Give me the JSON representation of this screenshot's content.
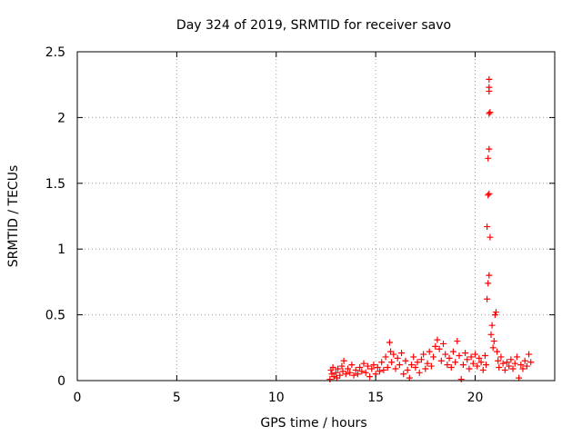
{
  "chart_data": {
    "type": "scatter",
    "title": "Day 324 of 2019, SRMTID for receiver savo",
    "xlabel": "GPS time / hours",
    "ylabel": "SRMTID / TECUs",
    "xlim": [
      0,
      24
    ],
    "ylim": [
      0,
      2.5
    ],
    "xticks": [
      0,
      5,
      10,
      15,
      20
    ],
    "xtick_labels": [
      "0",
      "5",
      "10",
      "15",
      "20"
    ],
    "yticks": [
      0,
      0.5,
      1,
      1.5,
      2,
      2.5
    ],
    "ytick_labels": [
      "0",
      "0.5",
      "1",
      "1.5",
      "2",
      "2.5"
    ],
    "grid": true,
    "marker": "+",
    "series": [
      {
        "name": "savo",
        "color": "#ff0000",
        "points": [
          [
            12.7,
            0.01
          ],
          [
            12.75,
            0.08
          ],
          [
            12.8,
            0.05
          ],
          [
            12.85,
            0.1
          ],
          [
            12.9,
            0.03
          ],
          [
            13.0,
            0.06
          ],
          [
            13.05,
            0.02
          ],
          [
            13.1,
            0.09
          ],
          [
            13.2,
            0.04
          ],
          [
            13.3,
            0.11
          ],
          [
            13.35,
            0.07
          ],
          [
            13.4,
            0.15
          ],
          [
            13.5,
            0.05
          ],
          [
            13.6,
            0.09
          ],
          [
            13.7,
            0.06
          ],
          [
            13.8,
            0.12
          ],
          [
            13.9,
            0.04
          ],
          [
            14.0,
            0.08
          ],
          [
            14.1,
            0.05
          ],
          [
            14.2,
            0.1
          ],
          [
            14.3,
            0.07
          ],
          [
            14.4,
            0.13
          ],
          [
            14.5,
            0.06
          ],
          [
            14.6,
            0.11
          ],
          [
            14.7,
            0.03
          ],
          [
            14.8,
            0.09
          ],
          [
            14.9,
            0.12
          ],
          [
            15.0,
            0.05
          ],
          [
            15.1,
            0.1
          ],
          [
            15.2,
            0.07
          ],
          [
            15.3,
            0.14
          ],
          [
            15.4,
            0.08
          ],
          [
            15.5,
            0.18
          ],
          [
            15.6,
            0.1
          ],
          [
            15.7,
            0.29
          ],
          [
            15.75,
            0.22
          ],
          [
            15.8,
            0.14
          ],
          [
            15.9,
            0.2
          ],
          [
            16.0,
            0.09
          ],
          [
            16.1,
            0.17
          ],
          [
            16.2,
            0.12
          ],
          [
            16.3,
            0.21
          ],
          [
            16.4,
            0.05
          ],
          [
            16.5,
            0.15
          ],
          [
            16.6,
            0.08
          ],
          [
            16.7,
            0.02
          ],
          [
            16.8,
            0.12
          ],
          [
            16.9,
            0.18
          ],
          [
            17.0,
            0.1
          ],
          [
            17.1,
            0.14
          ],
          [
            17.2,
            0.06
          ],
          [
            17.3,
            0.16
          ],
          [
            17.4,
            0.2
          ],
          [
            17.5,
            0.09
          ],
          [
            17.6,
            0.13
          ],
          [
            17.7,
            0.22
          ],
          [
            17.8,
            0.11
          ],
          [
            17.9,
            0.18
          ],
          [
            18.0,
            0.26
          ],
          [
            18.1,
            0.31
          ],
          [
            18.2,
            0.24
          ],
          [
            18.3,
            0.15
          ],
          [
            18.4,
            0.28
          ],
          [
            18.5,
            0.2
          ],
          [
            18.6,
            0.12
          ],
          [
            18.7,
            0.17
          ],
          [
            18.8,
            0.1
          ],
          [
            18.9,
            0.22
          ],
          [
            19.0,
            0.14
          ],
          [
            19.1,
            0.3
          ],
          [
            19.2,
            0.19
          ],
          [
            19.3,
            0.01
          ],
          [
            19.4,
            0.12
          ],
          [
            19.5,
            0.21
          ],
          [
            19.6,
            0.16
          ],
          [
            19.7,
            0.09
          ],
          [
            19.8,
            0.18
          ],
          [
            19.9,
            0.13
          ],
          [
            20.0,
            0.2
          ],
          [
            20.1,
            0.11
          ],
          [
            20.2,
            0.17
          ],
          [
            20.3,
            0.14
          ],
          [
            20.4,
            0.08
          ],
          [
            20.5,
            0.19
          ],
          [
            20.55,
            0.12
          ],
          [
            20.6,
            0.62
          ],
          [
            20.65,
            0.74
          ],
          [
            20.7,
            0.8
          ],
          [
            20.75,
            1.09
          ],
          [
            20.6,
            1.17
          ],
          [
            20.65,
            1.41
          ],
          [
            20.7,
            1.42
          ],
          [
            20.65,
            1.69
          ],
          [
            20.7,
            1.76
          ],
          [
            20.7,
            2.03
          ],
          [
            20.75,
            2.04
          ],
          [
            20.7,
            2.2
          ],
          [
            20.7,
            2.23
          ],
          [
            20.7,
            2.29
          ],
          [
            20.8,
            0.35
          ],
          [
            20.85,
            0.42
          ],
          [
            20.9,
            0.25
          ],
          [
            20.95,
            0.3
          ],
          [
            21.0,
            0.5
          ],
          [
            21.05,
            0.52
          ],
          [
            21.1,
            0.22
          ],
          [
            21.15,
            0.15
          ],
          [
            21.2,
            0.1
          ],
          [
            21.3,
            0.18
          ],
          [
            21.4,
            0.13
          ],
          [
            21.5,
            0.08
          ],
          [
            21.6,
            0.14
          ],
          [
            21.7,
            0.11
          ],
          [
            21.8,
            0.16
          ],
          [
            21.9,
            0.09
          ],
          [
            22.0,
            0.13
          ],
          [
            22.1,
            0.18
          ],
          [
            22.2,
            0.02
          ],
          [
            22.3,
            0.12
          ],
          [
            22.4,
            0.09
          ],
          [
            22.5,
            0.15
          ],
          [
            22.6,
            0.11
          ],
          [
            22.7,
            0.2
          ],
          [
            22.8,
            0.14
          ]
        ]
      }
    ]
  }
}
